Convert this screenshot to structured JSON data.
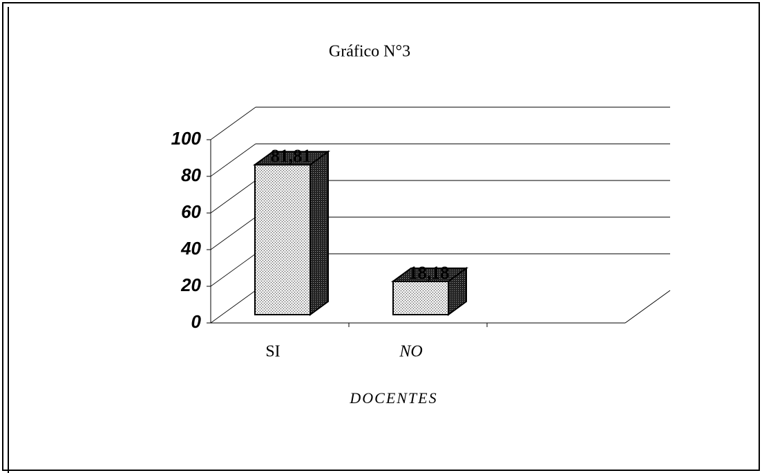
{
  "chart_data": {
    "type": "bar3d",
    "title": "Gráfico N°3",
    "categories": [
      "SI",
      "NO",
      null
    ],
    "values": [
      81.81,
      18.18,
      null
    ],
    "value_labels": [
      "81,81",
      "18,18",
      null
    ],
    "xlabel": "DOCENTES",
    "color": "#d8d8d8",
    "ylim": [
      0,
      100
    ],
    "yticks": [
      0,
      20,
      40,
      60,
      80,
      100
    ],
    "grid": true
  }
}
